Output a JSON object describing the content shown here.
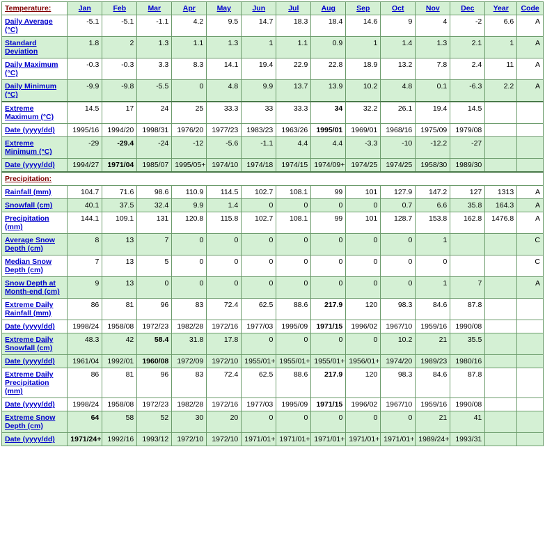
{
  "sections": {
    "temperature": "Temperature:",
    "precipitation": "Precipitation:"
  },
  "headers": [
    "Jan",
    "Feb",
    "Mar",
    "Apr",
    "May",
    "Jun",
    "Jul",
    "Aug",
    "Sep",
    "Oct",
    "Nov",
    "Dec",
    "Year",
    "Code"
  ],
  "rows": [
    {
      "id": "daily-avg",
      "label": "Daily Average (°C)",
      "cls": "white-row",
      "vals": [
        "-5.1",
        "-5.1",
        "-1.1",
        "4.2",
        "9.5",
        "14.7",
        "18.3",
        "18.4",
        "14.6",
        "9",
        "4",
        "-2",
        "6.6",
        "A"
      ]
    },
    {
      "id": "std-dev",
      "label": "Standard Deviation",
      "cls": "green-row",
      "vals": [
        "1.8",
        "2",
        "1.3",
        "1.1",
        "1.3",
        "1",
        "1.1",
        "0.9",
        "1",
        "1.4",
        "1.3",
        "2.1",
        "1",
        "A"
      ]
    },
    {
      "id": "daily-max",
      "label": "Daily Maximum (°C)",
      "cls": "white-row",
      "vals": [
        "-0.3",
        "-0.3",
        "3.3",
        "8.3",
        "14.1",
        "19.4",
        "22.9",
        "22.8",
        "18.9",
        "13.2",
        "7.8",
        "2.4",
        "11",
        "A"
      ]
    },
    {
      "id": "daily-min",
      "label": "Daily Minimum (°C)",
      "cls": "green-row thick-bottom",
      "vals": [
        "-9.9",
        "-9.8",
        "-5.5",
        "0",
        "4.8",
        "9.9",
        "13.7",
        "13.9",
        "10.2",
        "4.8",
        "0.1",
        "-6.3",
        "2.2",
        "A"
      ]
    },
    {
      "id": "ext-max",
      "label": "Extreme Maximum (°C)",
      "cls": "white-row",
      "vals": [
        "14.5",
        "17",
        "24",
        "25",
        "33.3",
        "33",
        "33.3",
        "34",
        "32.2",
        "26.1",
        "19.4",
        "14.5",
        "",
        ""
      ],
      "bold": [
        7
      ]
    },
    {
      "id": "ext-max-date",
      "label": "Date (yyyy/dd)",
      "cls": "white-row",
      "vals": [
        "1995/16",
        "1994/20",
        "1998/31",
        "1976/20",
        "1977/23",
        "1983/23",
        "1963/26",
        "1995/01",
        "1969/01",
        "1968/16",
        "1975/09",
        "1979/08",
        "",
        ""
      ],
      "bold": [
        7
      ]
    },
    {
      "id": "ext-min",
      "label": "Extreme Minimum (°C)",
      "cls": "green-row",
      "vals": [
        "-29",
        "-29.4",
        "-24",
        "-12",
        "-5.6",
        "-1.1",
        "4.4",
        "4.4",
        "-3.3",
        "-10",
        "-12.2",
        "-27",
        "",
        ""
      ],
      "bold": [
        1
      ]
    },
    {
      "id": "ext-min-date",
      "label": "Date (yyyy/dd)",
      "cls": "green-row thick-bottom",
      "vals": [
        "1994/27",
        "1971/04",
        "1985/07",
        "1995/05+",
        "1974/10",
        "1974/18",
        "1974/15",
        "1974/09+",
        "1974/25",
        "1974/25",
        "1958/30",
        "1989/30",
        "",
        ""
      ],
      "bold": [
        1
      ]
    },
    {
      "id": "rainfall",
      "label": "Rainfall (mm)",
      "cls": "white-row",
      "vals": [
        "104.7",
        "71.6",
        "98.6",
        "110.9",
        "114.5",
        "102.7",
        "108.1",
        "99",
        "101",
        "127.9",
        "147.2",
        "127",
        "1313",
        "A"
      ]
    },
    {
      "id": "snowfall",
      "label": "Snowfall (cm)",
      "cls": "green-row",
      "vals": [
        "40.1",
        "37.5",
        "32.4",
        "9.9",
        "1.4",
        "0",
        "0",
        "0",
        "0",
        "0.7",
        "6.6",
        "35.8",
        "164.3",
        "A"
      ]
    },
    {
      "id": "precip",
      "label": "Precipitation (mm)",
      "cls": "white-row",
      "vals": [
        "144.1",
        "109.1",
        "131",
        "120.8",
        "115.8",
        "102.7",
        "108.1",
        "99",
        "101",
        "128.7",
        "153.8",
        "162.8",
        "1476.8",
        "A"
      ]
    },
    {
      "id": "avg-snow-depth",
      "label": "Average Snow Depth (cm)",
      "cls": "green-row",
      "vals": [
        "8",
        "13",
        "7",
        "0",
        "0",
        "0",
        "0",
        "0",
        "0",
        "0",
        "1",
        "",
        "",
        "C"
      ]
    },
    {
      "id": "med-snow-depth",
      "label": "Median Snow Depth (cm)",
      "cls": "white-row",
      "vals": [
        "7",
        "13",
        "5",
        "0",
        "0",
        "0",
        "0",
        "0",
        "0",
        "0",
        "0",
        "",
        "",
        "C"
      ]
    },
    {
      "id": "snow-month-end",
      "label": "Snow Depth at Month-end (cm)",
      "cls": "green-row",
      "vals": [
        "9",
        "13",
        "0",
        "0",
        "0",
        "0",
        "0",
        "0",
        "0",
        "0",
        "1",
        "7",
        "",
        "A"
      ]
    },
    {
      "id": "ext-rainfall",
      "label": "Extreme Daily Rainfall (mm)",
      "cls": "white-row",
      "vals": [
        "86",
        "81",
        "96",
        "83",
        "72.4",
        "62.5",
        "88.6",
        "217.9",
        "120",
        "98.3",
        "84.6",
        "87.8",
        "",
        ""
      ],
      "bold": [
        7
      ]
    },
    {
      "id": "ext-rainfall-date",
      "label": "Date (yyyy/dd)",
      "cls": "white-row",
      "vals": [
        "1998/24",
        "1958/08",
        "1972/23",
        "1982/28",
        "1972/16",
        "1977/03",
        "1995/09",
        "1971/15",
        "1996/02",
        "1967/10",
        "1959/16",
        "1990/08",
        "",
        ""
      ],
      "bold": [
        7
      ]
    },
    {
      "id": "ext-snowfall",
      "label": "Extreme Daily Snowfall (cm)",
      "cls": "green-row",
      "vals": [
        "48.3",
        "42",
        "58.4",
        "31.8",
        "17.8",
        "0",
        "0",
        "0",
        "0",
        "10.2",
        "21",
        "35.5",
        "",
        ""
      ],
      "bold": [
        2
      ]
    },
    {
      "id": "ext-snowfall-date",
      "label": "Date (yyyy/dd)",
      "cls": "green-row",
      "vals": [
        "1961/04",
        "1992/01",
        "1960/08",
        "1972/09",
        "1972/10",
        "1955/01+",
        "1955/01+",
        "1955/01+",
        "1956/01+",
        "1974/20",
        "1989/23",
        "1980/16",
        "",
        ""
      ],
      "bold": [
        2
      ]
    },
    {
      "id": "ext-precip",
      "label": "Extreme Daily Precipitation (mm)",
      "cls": "white-row",
      "vals": [
        "86",
        "81",
        "96",
        "83",
        "72.4",
        "62.5",
        "88.6",
        "217.9",
        "120",
        "98.3",
        "84.6",
        "87.8",
        "",
        ""
      ],
      "bold": [
        7
      ]
    },
    {
      "id": "ext-precip-date",
      "label": "Date (yyyy/dd)",
      "cls": "white-row",
      "vals": [
        "1998/24",
        "1958/08",
        "1972/23",
        "1982/28",
        "1972/16",
        "1977/03",
        "1995/09",
        "1971/15",
        "1996/02",
        "1967/10",
        "1959/16",
        "1990/08",
        "",
        ""
      ],
      "bold": [
        7
      ]
    },
    {
      "id": "ext-snow-depth",
      "label": "Extreme Snow Depth (cm)",
      "cls": "green-row",
      "vals": [
        "64",
        "58",
        "52",
        "30",
        "20",
        "0",
        "0",
        "0",
        "0",
        "0",
        "21",
        "41",
        "",
        ""
      ],
      "bold": [
        0
      ]
    },
    {
      "id": "ext-snow-depth-date",
      "label": "Date (yyyy/dd)",
      "cls": "green-row",
      "vals": [
        "1971/24+",
        "1992/16",
        "1993/12",
        "1972/10",
        "1972/10",
        "1971/01+",
        "1971/01+",
        "1971/01+",
        "1971/01+",
        "1971/01+",
        "1989/24+",
        "1993/31",
        "",
        ""
      ],
      "bold": [
        0
      ]
    }
  ]
}
